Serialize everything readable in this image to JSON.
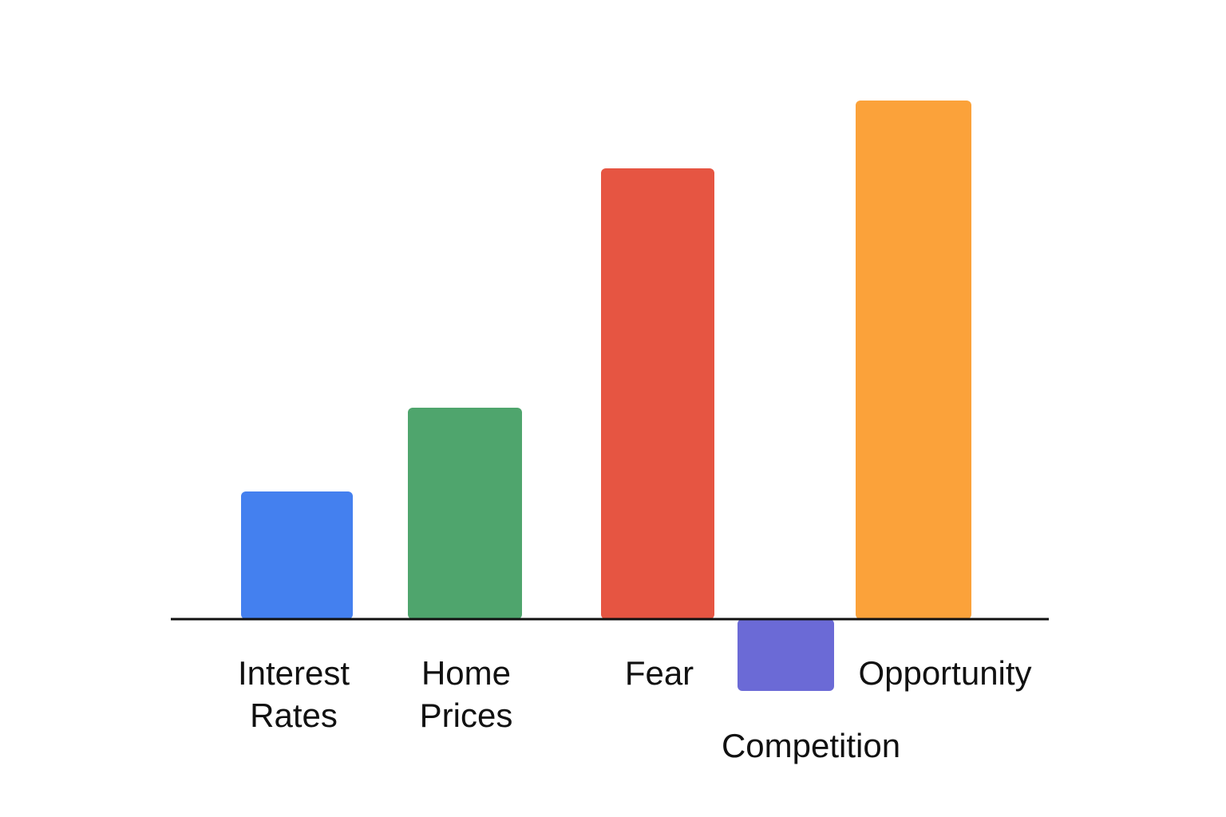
{
  "chart_data": {
    "type": "bar",
    "title": "",
    "xlabel": "",
    "ylabel": "",
    "categories": [
      "Interest Rates",
      "Home Prices",
      "Fear",
      "Competition",
      "Opportunity"
    ],
    "category_lines": [
      [
        "Interest",
        "Rates"
      ],
      [
        "Home",
        "Prices"
      ],
      [
        "Fear"
      ],
      [
        "Competition"
      ],
      [
        "Opportunity"
      ]
    ],
    "values": [
      16,
      26.5,
      56.5,
      -9,
      65
    ],
    "ylim": [
      -12,
      70
    ],
    "grid": false,
    "legend": "none",
    "colors": [
      "#4480ef",
      "#4fa56d",
      "#e65542",
      "#6b6ad6",
      "#fba23a"
    ]
  }
}
